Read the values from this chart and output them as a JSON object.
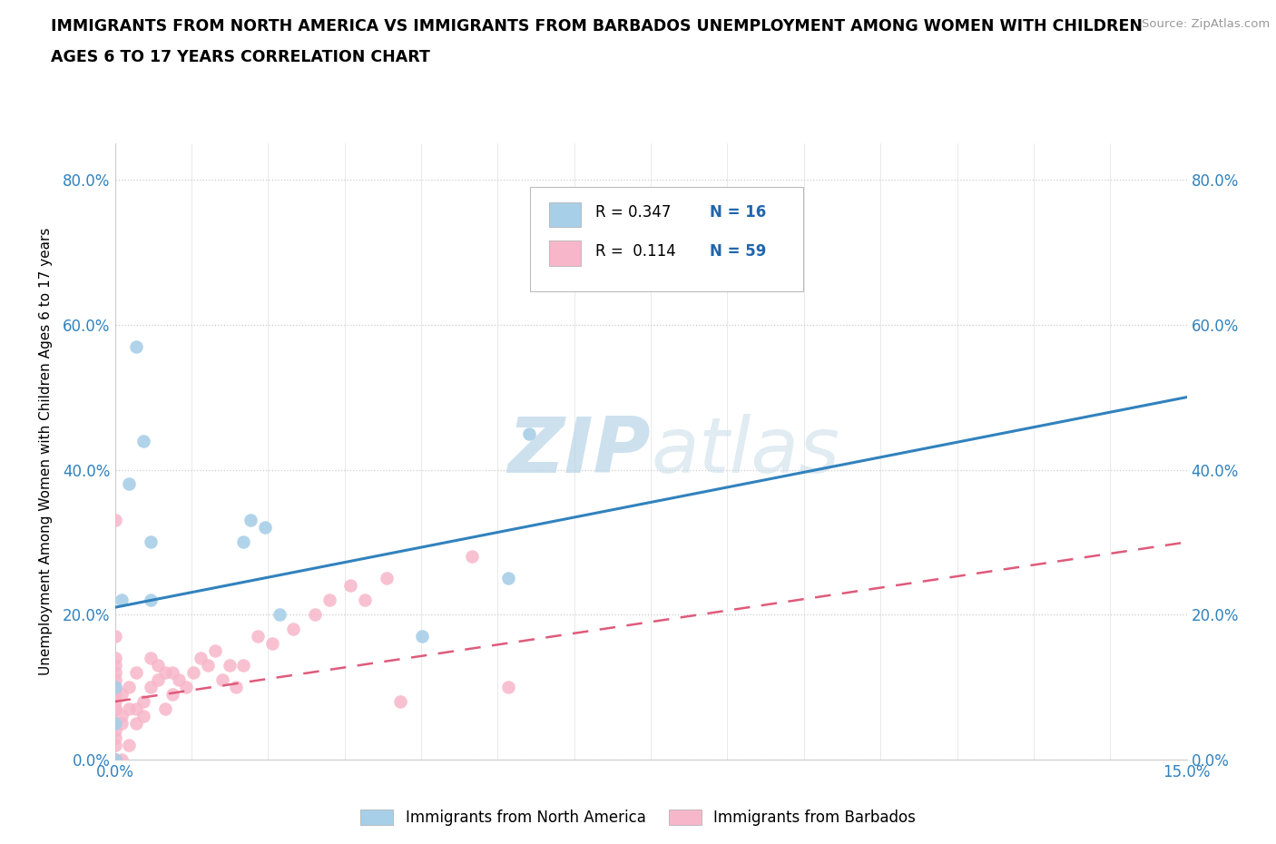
{
  "title_line1": "IMMIGRANTS FROM NORTH AMERICA VS IMMIGRANTS FROM BARBADOS UNEMPLOYMENT AMONG WOMEN WITH CHILDREN",
  "title_line2": "AGES 6 TO 17 YEARS CORRELATION CHART",
  "source_text": "Source: ZipAtlas.com",
  "ylabel": "Unemployment Among Women with Children Ages 6 to 17 years",
  "xlim": [
    0.0,
    0.15
  ],
  "ylim": [
    0.0,
    0.85
  ],
  "ytick_labels": [
    "0.0%",
    "20.0%",
    "40.0%",
    "60.0%",
    "80.0%"
  ],
  "ytick_values": [
    0.0,
    0.2,
    0.4,
    0.6,
    0.8
  ],
  "legend_label1": "Immigrants from North America",
  "legend_label2": "Immigrants from Barbados",
  "R1": 0.347,
  "N1": 16,
  "R2": 0.114,
  "N2": 59,
  "color_blue": "#a8cfe8",
  "color_blue_dark": "#2166ac",
  "color_pink": "#f7b6c9",
  "color_pink_dark": "#e05a7a",
  "color_blue_line": "#3182bd",
  "color_pink_line": "#e05a7a",
  "watermark_color": "#d8e8f0",
  "north_america_x": [
    0.0,
    0.0,
    0.0,
    0.001,
    0.002,
    0.003,
    0.004,
    0.005,
    0.005,
    0.018,
    0.019,
    0.021,
    0.023,
    0.043,
    0.055,
    0.058
  ],
  "north_america_y": [
    0.0,
    0.05,
    0.1,
    0.22,
    0.38,
    0.57,
    0.44,
    0.3,
    0.22,
    0.3,
    0.33,
    0.32,
    0.2,
    0.17,
    0.25,
    0.45
  ],
  "barbados_x": [
    0.0,
    0.0,
    0.0,
    0.0,
    0.0,
    0.0,
    0.0,
    0.0,
    0.0,
    0.0,
    0.0,
    0.0,
    0.0,
    0.0,
    0.0,
    0.0,
    0.0,
    0.0,
    0.001,
    0.001,
    0.001,
    0.001,
    0.002,
    0.002,
    0.002,
    0.003,
    0.003,
    0.003,
    0.004,
    0.004,
    0.005,
    0.005,
    0.006,
    0.006,
    0.007,
    0.007,
    0.008,
    0.008,
    0.009,
    0.01,
    0.011,
    0.012,
    0.013,
    0.014,
    0.015,
    0.016,
    0.017,
    0.018,
    0.02,
    0.022,
    0.025,
    0.028,
    0.03,
    0.033,
    0.035,
    0.038,
    0.04,
    0.05,
    0.055
  ],
  "barbados_y": [
    0.0,
    0.0,
    0.0,
    0.02,
    0.03,
    0.04,
    0.05,
    0.07,
    0.07,
    0.08,
    0.09,
    0.1,
    0.11,
    0.12,
    0.13,
    0.14,
    0.17,
    0.33,
    0.0,
    0.05,
    0.06,
    0.09,
    0.02,
    0.07,
    0.1,
    0.05,
    0.07,
    0.12,
    0.06,
    0.08,
    0.1,
    0.14,
    0.11,
    0.13,
    0.07,
    0.12,
    0.09,
    0.12,
    0.11,
    0.1,
    0.12,
    0.14,
    0.13,
    0.15,
    0.11,
    0.13,
    0.1,
    0.13,
    0.17,
    0.16,
    0.18,
    0.2,
    0.22,
    0.24,
    0.22,
    0.25,
    0.08,
    0.28,
    0.1
  ],
  "blue_line_x": [
    0.0,
    0.15
  ],
  "blue_line_y": [
    0.21,
    0.5
  ],
  "pink_line_x": [
    0.0,
    0.15
  ],
  "pink_line_y": [
    0.08,
    0.3
  ]
}
